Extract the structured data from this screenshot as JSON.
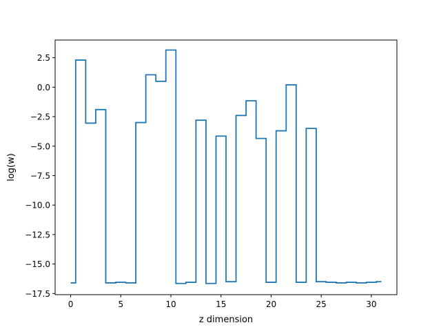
{
  "chart_data": {
    "type": "line",
    "drawstyle": "steps-mid",
    "title": "",
    "xlabel": "z dimension",
    "ylabel": "log(w)",
    "xlim": [
      -1.55,
      32.55
    ],
    "ylim": [
      -17.6,
      4.0
    ],
    "grid": false,
    "line_color": "#1f77b4",
    "xticks": [
      0,
      5,
      10,
      15,
      20,
      25,
      30
    ],
    "xtick_labels": [
      "0",
      "5",
      "10",
      "15",
      "20",
      "25",
      "30"
    ],
    "yticks": [
      2.5,
      0.0,
      -2.5,
      -5.0,
      -7.5,
      -10.0,
      -12.5,
      -15.0,
      -17.5
    ],
    "ytick_labels": [
      "2.5",
      "0.0",
      "−2.5",
      "−5.0",
      "−7.5",
      "−10.0",
      "−12.5",
      "−15.0",
      "−17.5"
    ],
    "series": [
      {
        "x": [
          0,
          1,
          2,
          3,
          4,
          5,
          6,
          7,
          8,
          9,
          10,
          11,
          12,
          13,
          14,
          15,
          16,
          17,
          18,
          19,
          20,
          21,
          22,
          23,
          24,
          25,
          26,
          27,
          28,
          29,
          30,
          31
        ],
        "y": [
          -16.6,
          2.3,
          -3.05,
          -1.9,
          -16.6,
          -16.55,
          -16.6,
          -3.0,
          1.05,
          0.5,
          3.15,
          -16.65,
          -16.55,
          -2.8,
          -16.65,
          -4.15,
          -16.5,
          -2.4,
          -1.15,
          -4.35,
          -16.55,
          -3.7,
          0.2,
          -16.55,
          -3.5,
          -16.5,
          -16.55,
          -16.6,
          -16.55,
          -16.6,
          -16.55,
          -16.5
        ]
      }
    ]
  }
}
